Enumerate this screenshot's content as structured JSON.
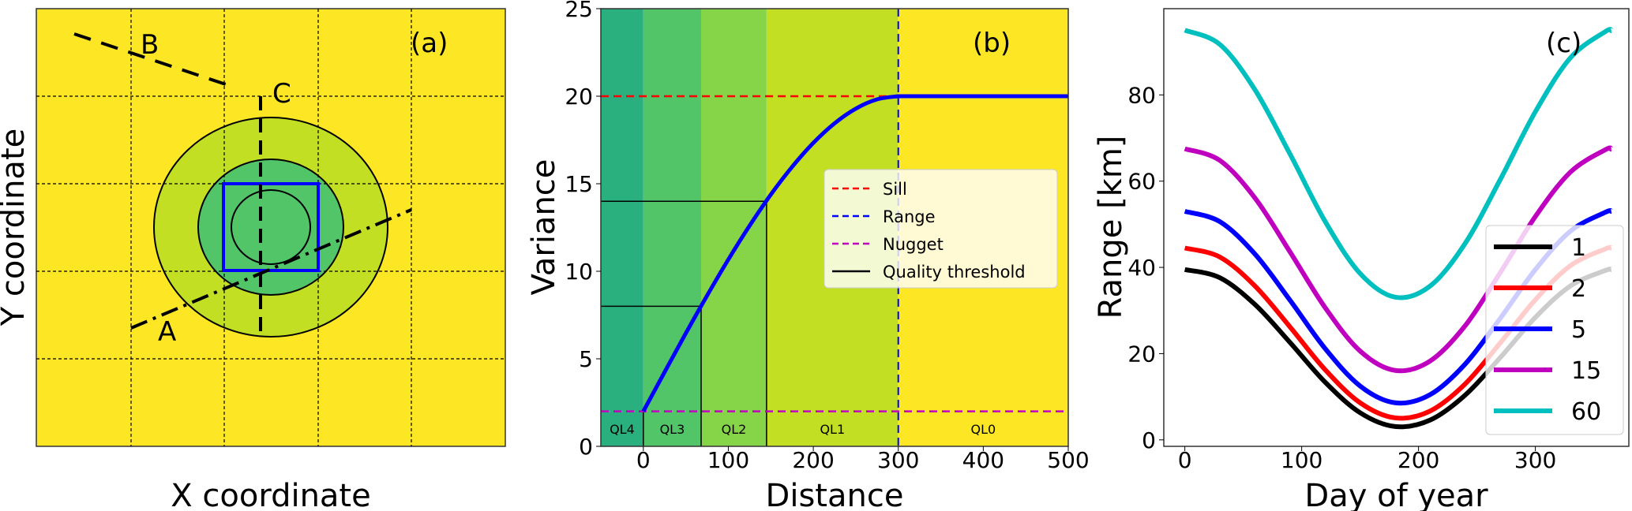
{
  "colors": {
    "yellow": "#FDE725",
    "ql1": "#C2DF23",
    "ql2": "#86D549",
    "ql3": "#52C569",
    "ql4": "#2AB07F",
    "sill": "#FF0000",
    "range": "#0000FF",
    "nugget": "#BF00BF",
    "threshold": "#000000"
  },
  "chart_data": [
    {
      "panel": "(a)",
      "type": "diagram",
      "xlabel": "X coordinate",
      "ylabel": "Y coordinate",
      "line_labels": [
        "A",
        "B",
        "C"
      ],
      "grid": true
    },
    {
      "panel": "(b)",
      "type": "line",
      "xlabel": "Distance",
      "ylabel": "Variance",
      "xlim": [
        -50,
        500
      ],
      "ylim": [
        0,
        25
      ],
      "xticks": [
        "0",
        "100",
        "200",
        "300",
        "400",
        "500"
      ],
      "yticks": [
        "0",
        "5",
        "10",
        "15",
        "20",
        "25"
      ],
      "sill": 20,
      "range": 300,
      "nugget": 2,
      "thresholds": [
        {
          "distance": 68,
          "variance": 8
        },
        {
          "distance": 145,
          "variance": 14
        }
      ],
      "quality_levels": [
        {
          "label": "QL4",
          "from": -50,
          "to": 0
        },
        {
          "label": "QL3",
          "from": 0,
          "to": 68
        },
        {
          "label": "QL2",
          "from": 68,
          "to": 145
        },
        {
          "label": "QL1",
          "from": 145,
          "to": 300
        },
        {
          "label": "QL0",
          "from": 300,
          "to": 500
        }
      ],
      "curve": {
        "x": [
          0,
          25,
          50,
          75,
          100,
          125,
          150,
          175,
          200,
          225,
          250,
          275,
          300,
          500
        ],
        "y": [
          2,
          4.24,
          6.46,
          8.61,
          10.67,
          12.6,
          14.38,
          15.96,
          17.33,
          18.45,
          19.29,
          19.82,
          20,
          20
        ]
      },
      "legend": [
        "Sill",
        "Range",
        "Nugget",
        "Quality threshold"
      ],
      "legend_position": "center-right"
    },
    {
      "panel": "(c)",
      "type": "line",
      "xlabel": "Day of year",
      "ylabel": "Range [km]",
      "xlim": [
        -18,
        380
      ],
      "ylim": [
        -1.5,
        100
      ],
      "xticks": [
        "0",
        "100",
        "200",
        "300"
      ],
      "yticks": [
        "0",
        "20",
        "40",
        "60",
        "80"
      ],
      "x": [
        0,
        30,
        60,
        90,
        120,
        150,
        180,
        210,
        240,
        270,
        300,
        330,
        360,
        365
      ],
      "series": [
        {
          "name": "1",
          "color": "#000000",
          "values": [
            39.5,
            37.6,
            31.4,
            22.6,
            13.4,
            6.3,
            3.1,
            4.6,
            10.4,
            19.1,
            28.4,
            35.7,
            39.3,
            39.5
          ]
        },
        {
          "name": "2",
          "color": "#FF0000",
          "values": [
            44.5,
            42.4,
            35.7,
            26.2,
            16.3,
            8.6,
            5.1,
            6.7,
            13.0,
            22.5,
            32.5,
            40.4,
            44.3,
            44.5
          ]
        },
        {
          "name": "5",
          "color": "#0000FF",
          "values": [
            53.0,
            50.6,
            43.1,
            32.4,
            21.2,
            12.5,
            8.6,
            10.5,
            17.6,
            28.2,
            39.5,
            48.4,
            52.8,
            53.0
          ]
        },
        {
          "name": "15",
          "color": "#BF00BF",
          "values": [
            67.5,
            64.8,
            56.1,
            43.6,
            30.7,
            20.6,
            16.1,
            18.3,
            26.5,
            38.8,
            51.8,
            62.1,
            67.3,
            67.4
          ]
        },
        {
          "name": "60",
          "color": "#00BFBF",
          "values": [
            95.0,
            91.7,
            81.2,
            66.3,
            50.7,
            38.6,
            33.1,
            35.7,
            45.6,
            60.4,
            76.1,
            88.6,
            94.7,
            94.9
          ]
        }
      ],
      "legend_position": "lower-right"
    }
  ]
}
